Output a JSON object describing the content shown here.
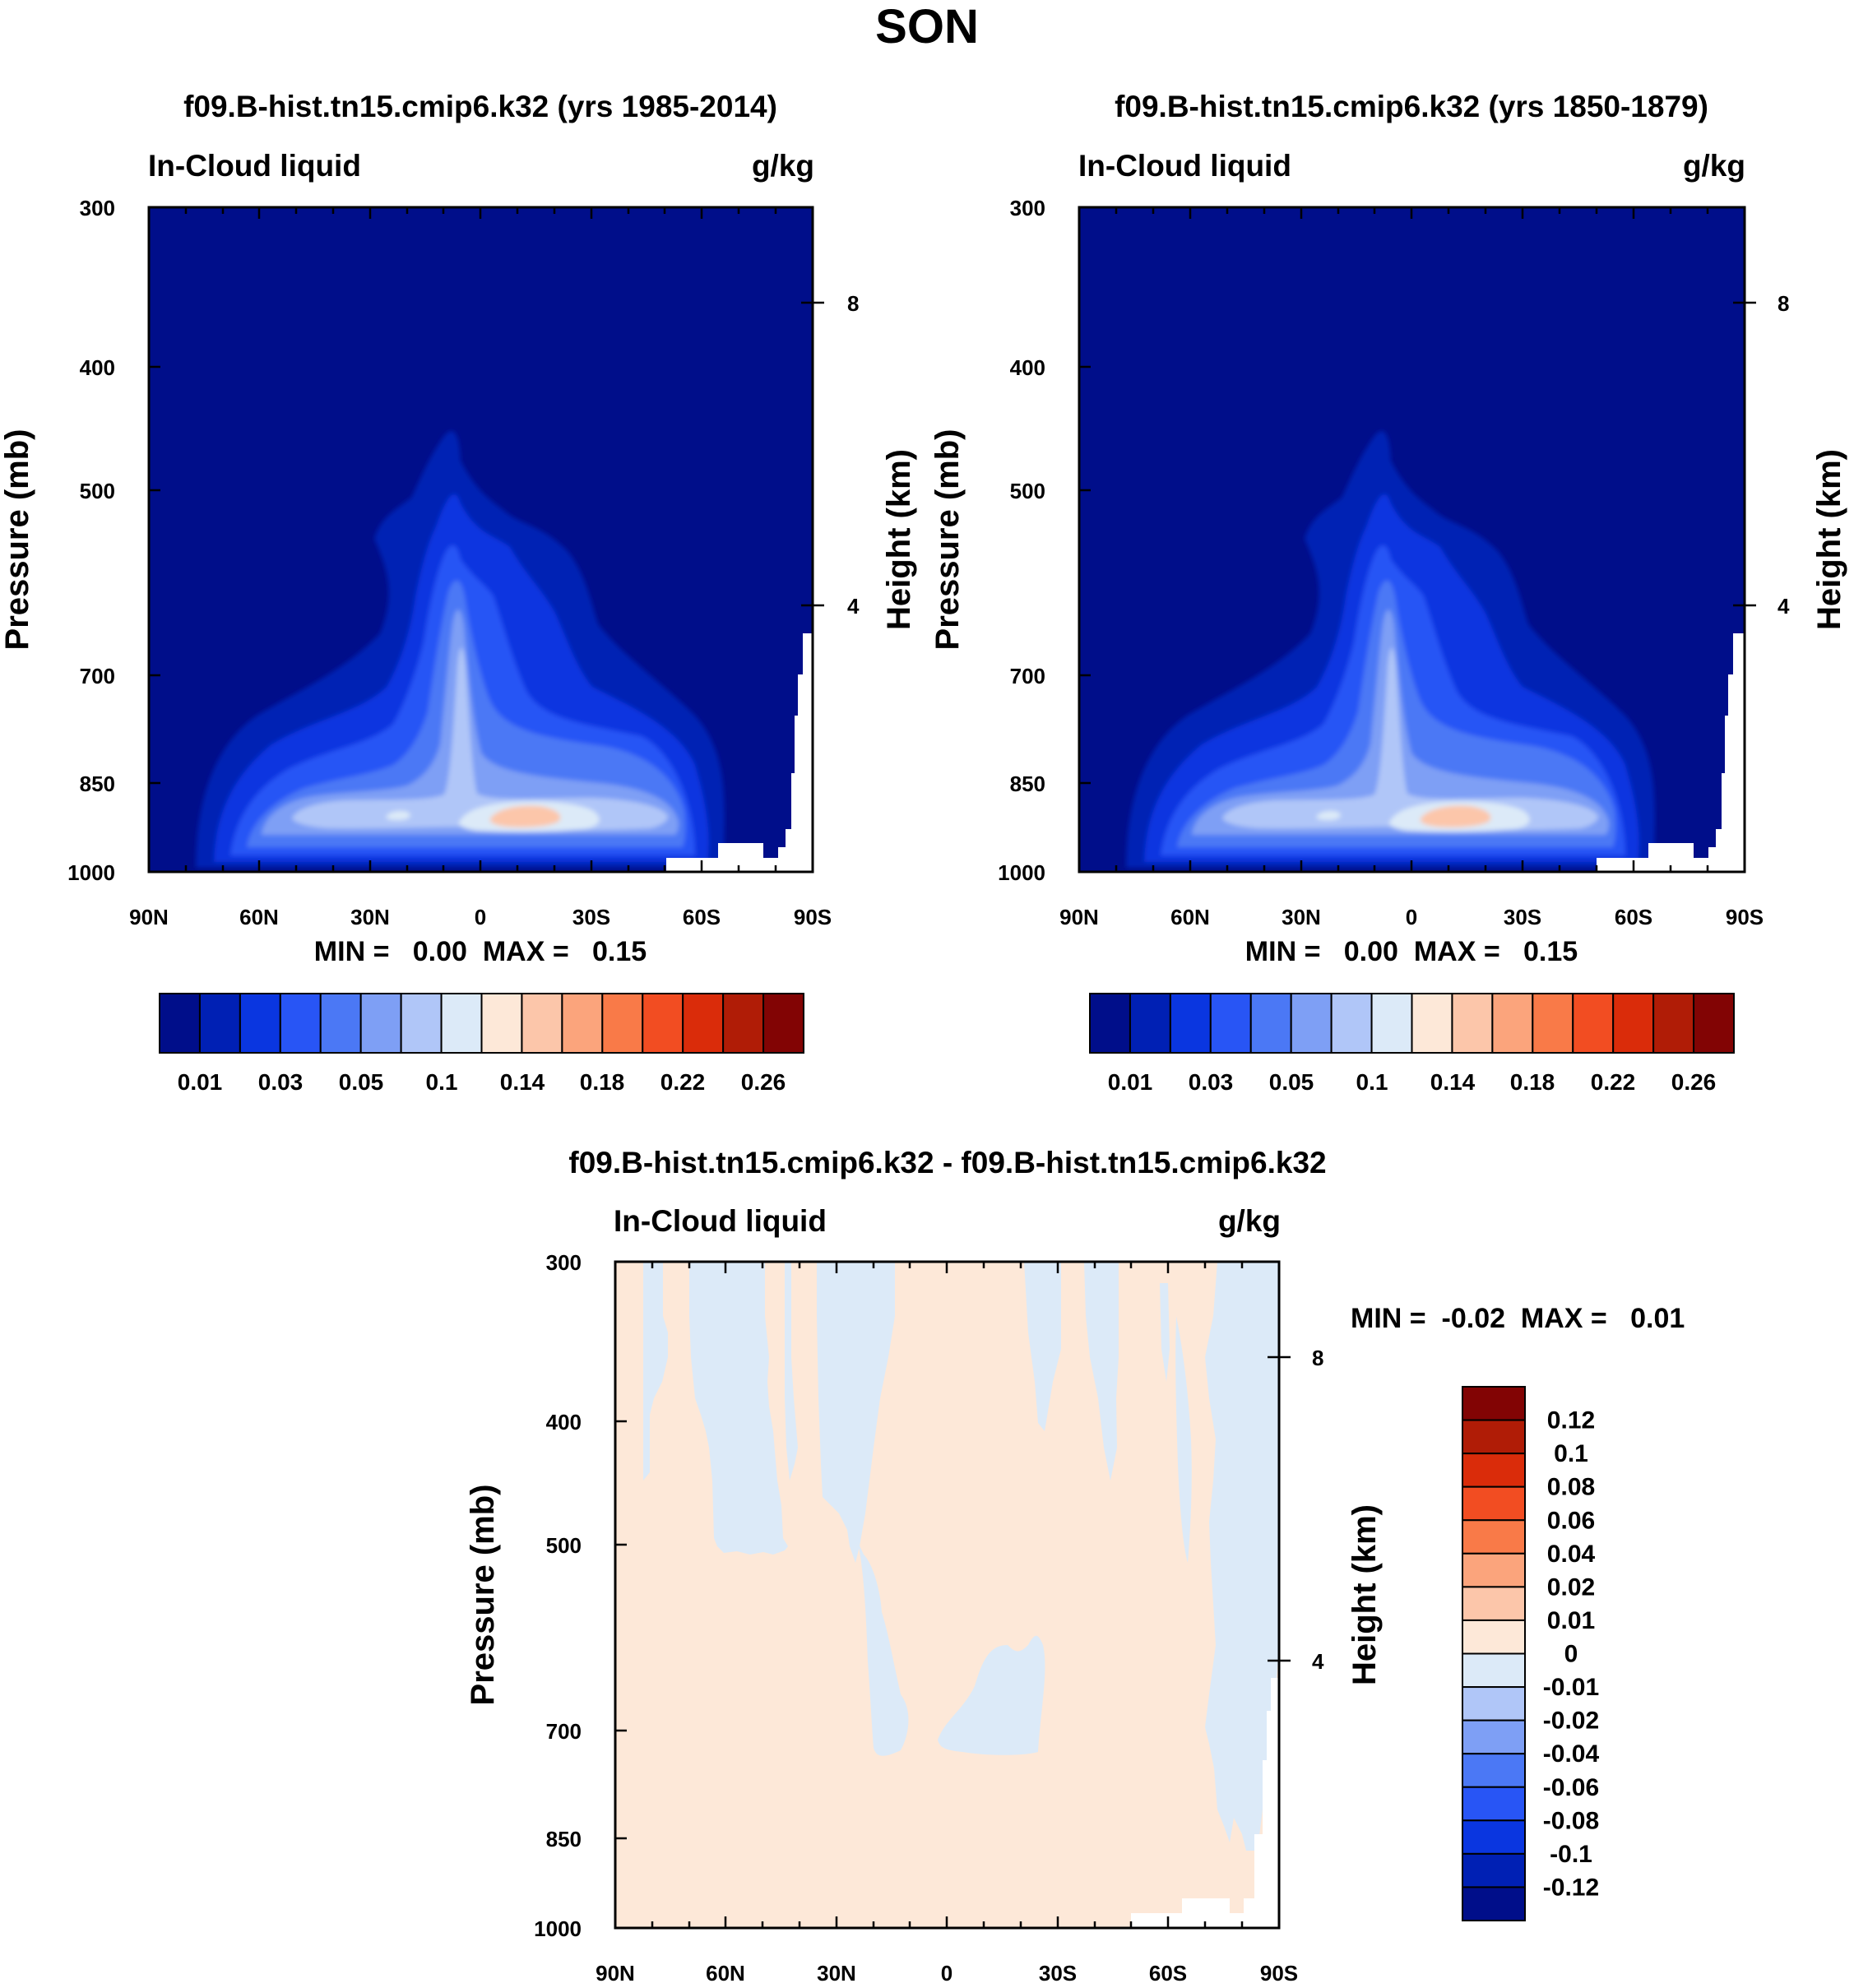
{
  "figure_title": "SON",
  "chart_data": [
    {
      "type": "heatmap",
      "title": "f09.B-hist.tn15.cmip6.k32 (yrs 1985-2014)",
      "left_label": "In-Cloud liquid",
      "right_label": "g/kg",
      "ylabel": "Pressure (mb)",
      "ylabel_right": "Height (km)",
      "x_ticks": [
        "90N",
        "60N",
        "30N",
        "0",
        "30S",
        "60S",
        "90S"
      ],
      "y_ticks": [
        "300",
        "400",
        "500",
        "700",
        "850",
        "1000"
      ],
      "y_right_ticks": [
        "8",
        "4"
      ],
      "stats": "MIN =   0.00  MAX =   0.15",
      "colorbar_levels": [
        "0.01",
        "0.03",
        "0.05",
        "0.1",
        "0.14",
        "0.18",
        "0.22",
        "0.26"
      ],
      "min": 0.0,
      "max": 0.15
    },
    {
      "type": "heatmap",
      "title": "f09.B-hist.tn15.cmip6.k32 (yrs 1850-1879)",
      "left_label": "In-Cloud liquid",
      "right_label": "g/kg",
      "ylabel": "Pressure (mb)",
      "ylabel_right": "Height (km)",
      "x_ticks": [
        "90N",
        "60N",
        "30N",
        "0",
        "30S",
        "60S",
        "90S"
      ],
      "y_ticks": [
        "300",
        "400",
        "500",
        "700",
        "850",
        "1000"
      ],
      "y_right_ticks": [
        "8",
        "4"
      ],
      "stats": "MIN =   0.00  MAX =   0.15",
      "colorbar_levels": [
        "0.01",
        "0.03",
        "0.05",
        "0.1",
        "0.14",
        "0.18",
        "0.22",
        "0.26"
      ],
      "min": 0.0,
      "max": 0.15
    },
    {
      "type": "heatmap",
      "title": "f09.B-hist.tn15.cmip6.k32 - f09.B-hist.tn15.cmip6.k32",
      "left_label": "In-Cloud liquid",
      "right_label": "g/kg",
      "ylabel": "Pressure (mb)",
      "ylabel_right": "Height (km)",
      "x_ticks": [
        "90N",
        "60N",
        "30N",
        "0",
        "30S",
        "60S",
        "90S"
      ],
      "y_ticks": [
        "300",
        "400",
        "500",
        "700",
        "850",
        "1000"
      ],
      "y_right_ticks": [
        "8",
        "4"
      ],
      "stats": "MIN =  -0.02  MAX =   0.01",
      "colorbar_levels": [
        "0.12",
        "0.1",
        "0.08",
        "0.06",
        "0.04",
        "0.02",
        "0.01",
        "0",
        "-0.01",
        "-0.02",
        "-0.04",
        "-0.06",
        "-0.08",
        "-0.1",
        "-0.12"
      ],
      "min": -0.02,
      "max": 0.01
    }
  ],
  "colors": {
    "seq": [
      "#000e8a",
      "#0020b4",
      "#0a36e0",
      "#2855f5",
      "#4b78f5",
      "#7e9ff5",
      "#b0c6f8",
      "#dceaf8",
      "#fde8d8",
      "#fcc6aa",
      "#fba47c",
      "#f97a48",
      "#f24d22",
      "#da2c0a",
      "#b01c06",
      "#820404"
    ],
    "diff": [
      "#820404",
      "#b01c06",
      "#da2c0a",
      "#f24d22",
      "#f97a48",
      "#fba47c",
      "#fcc6aa",
      "#fde8d8",
      "#dceaf8",
      "#b0c6f8",
      "#7e9ff5",
      "#4b78f5",
      "#2855f5",
      "#0a36e0",
      "#0020b4",
      "#000e8a"
    ]
  }
}
